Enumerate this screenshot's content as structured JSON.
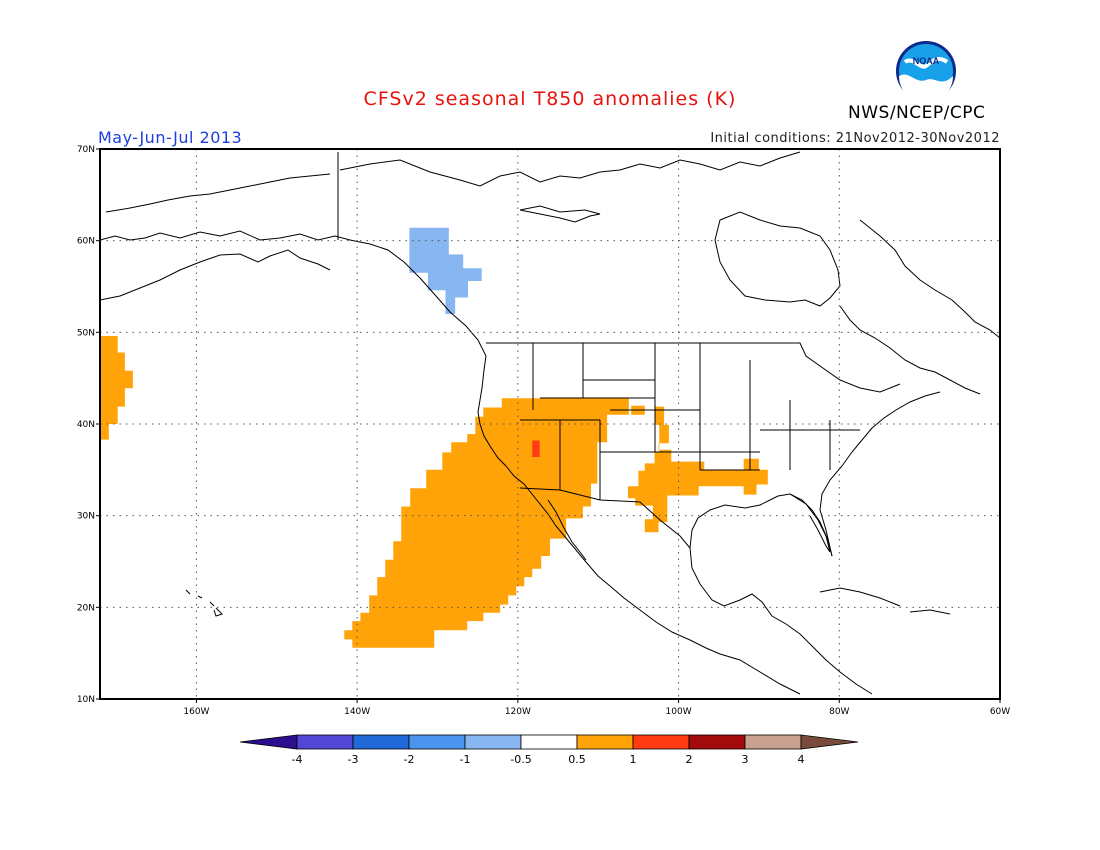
{
  "header": {
    "title": "CFSv2 seasonal T850 anomalies (K)",
    "agency": "NWS/NCEP/CPC",
    "logo_text": "NOAA",
    "season": "May-Jun-Jul 2013",
    "initial_conditions": "Initial conditions: 21Nov2012-30Nov2012"
  },
  "map": {
    "lon_range": [
      -172,
      -60
    ],
    "lat_range": [
      10,
      70
    ],
    "lat_ticks": [
      {
        "value": 70,
        "label": "70N"
      },
      {
        "value": 60,
        "label": "60N"
      },
      {
        "value": 50,
        "label": "50N"
      },
      {
        "value": 40,
        "label": "40N"
      },
      {
        "value": 30,
        "label": "30N"
      },
      {
        "value": 20,
        "label": "20N"
      },
      {
        "value": 10,
        "label": "10N"
      }
    ],
    "lon_ticks": [
      {
        "value": -160,
        "label": "160W"
      },
      {
        "value": -140,
        "label": "140W"
      },
      {
        "value": -120,
        "label": "120W"
      },
      {
        "value": -100,
        "label": "100W"
      },
      {
        "value": -80,
        "label": "80W"
      },
      {
        "value": -60,
        "label": "60W"
      }
    ],
    "grid": "dotted",
    "anomaly_regions": [
      {
        "name": "alaska-panhandle-cold",
        "level": "-1 to -0.5",
        "color": "#87b6f0",
        "lonlat": [
          [
            -133.5,
            61.4
          ],
          [
            -128.6,
            61.4
          ],
          [
            -128.6,
            58.5
          ],
          [
            -126.8,
            58.5
          ],
          [
            -126.8,
            57.0
          ],
          [
            -124.5,
            57.0
          ],
          [
            -124.5,
            55.6
          ],
          [
            -126.2,
            55.6
          ],
          [
            -126.2,
            53.8
          ],
          [
            -127.8,
            53.8
          ],
          [
            -127.8,
            52.0
          ],
          [
            -129,
            52.0
          ],
          [
            -129,
            54.6
          ],
          [
            -131.2,
            54.6
          ],
          [
            -131.2,
            56.5
          ],
          [
            -133.5,
            56.5
          ]
        ]
      },
      {
        "name": "pacific-dateline-warm",
        "level": "0.5 to 1",
        "color": "#ffa308",
        "lonlat": [
          [
            -172,
            49.6
          ],
          [
            -169.8,
            49.6
          ],
          [
            -169.8,
            47.8
          ],
          [
            -168.9,
            47.8
          ],
          [
            -168.9,
            45.8
          ],
          [
            -167.9,
            45.8
          ],
          [
            -167.9,
            43.9
          ],
          [
            -168.9,
            43.9
          ],
          [
            -168.9,
            41.9
          ],
          [
            -169.8,
            41.9
          ],
          [
            -169.8,
            40.0
          ],
          [
            -170.9,
            40.0
          ],
          [
            -170.9,
            38.3
          ],
          [
            -172,
            38.3
          ]
        ]
      },
      {
        "name": "eastern-pacific-west-us-warm",
        "level": "0.5 to 1",
        "color": "#ffa308",
        "lonlat": [
          [
            -122,
            42.8
          ],
          [
            -106.2,
            42.8
          ],
          [
            -106.2,
            41.0
          ],
          [
            -108.9,
            41.0
          ],
          [
            -108.9,
            38.0
          ],
          [
            -110.1,
            38.0
          ],
          [
            -110.1,
            33.5
          ],
          [
            -110.9,
            33.5
          ],
          [
            -110.9,
            31.0
          ],
          [
            -111.9,
            31.0
          ],
          [
            -111.9,
            29.7
          ],
          [
            -114,
            29.7
          ],
          [
            -114,
            27.5
          ],
          [
            -116,
            27.5
          ],
          [
            -116,
            25.6
          ],
          [
            -117.1,
            25.6
          ],
          [
            -117.1,
            24.2
          ],
          [
            -118.2,
            24.2
          ],
          [
            -118.2,
            23.3
          ],
          [
            -119.2,
            23.3
          ],
          [
            -119.2,
            22.3
          ],
          [
            -120.2,
            22.3
          ],
          [
            -120.2,
            21.3
          ],
          [
            -121.2,
            21.3
          ],
          [
            -121.2,
            20.3
          ],
          [
            -122.2,
            20.3
          ],
          [
            -122.2,
            19.4
          ],
          [
            -124.3,
            19.4
          ],
          [
            -124.3,
            18.5
          ],
          [
            -126.3,
            18.5
          ],
          [
            -126.3,
            17.5
          ],
          [
            -130.4,
            17.5
          ],
          [
            -130.4,
            15.6
          ],
          [
            -140.6,
            15.6
          ],
          [
            -140.6,
            16.5
          ],
          [
            -141.6,
            16.5
          ],
          [
            -141.6,
            17.5
          ],
          [
            -140.6,
            17.5
          ],
          [
            -140.6,
            18.5
          ],
          [
            -139.6,
            18.5
          ],
          [
            -139.6,
            19.4
          ],
          [
            -138.5,
            19.4
          ],
          [
            -138.5,
            21.3
          ],
          [
            -137.5,
            21.3
          ],
          [
            -137.5,
            23.3
          ],
          [
            -136.5,
            23.3
          ],
          [
            -136.5,
            25.2
          ],
          [
            -135.5,
            25.2
          ],
          [
            -135.5,
            27.2
          ],
          [
            -134.5,
            27.2
          ],
          [
            -134.5,
            31.0
          ],
          [
            -133.4,
            31.0
          ],
          [
            -133.4,
            33.0
          ],
          [
            -131.4,
            33.0
          ],
          [
            -131.4,
            35.0
          ],
          [
            -129.4,
            35.0
          ],
          [
            -129.4,
            36.9
          ],
          [
            -128.3,
            36.9
          ],
          [
            -128.3,
            38.0
          ],
          [
            -126.3,
            38.0
          ],
          [
            -126.3,
            38.9
          ],
          [
            -125.3,
            38.9
          ],
          [
            -125.3,
            40.8
          ],
          [
            -124.3,
            40.8
          ],
          [
            -124.3,
            41.8
          ],
          [
            -122,
            41.8
          ]
        ]
      },
      {
        "name": "colorado-warm",
        "level": "0.5 to 1",
        "color": "#ffa308",
        "lonlat": [
          [
            -105.9,
            42.0
          ],
          [
            -104.2,
            42.0
          ],
          [
            -104.2,
            41.0
          ],
          [
            -105.9,
            41.0
          ]
        ]
      },
      {
        "name": "central-plains-warm",
        "level": "0.5 to 1",
        "color": "#ffa308",
        "lonlat": [
          [
            -103,
            41.9
          ],
          [
            -101.8,
            41.9
          ],
          [
            -101.8,
            39.9
          ],
          [
            -101.2,
            39.9
          ],
          [
            -101.2,
            37.9
          ],
          [
            -102.5,
            37.9
          ],
          [
            -102.5,
            37.2
          ],
          [
            -100.9,
            37.2
          ],
          [
            -100.9,
            35.9
          ],
          [
            -96.8,
            35.9
          ],
          [
            -96.8,
            35.0
          ],
          [
            -91.9,
            35.0
          ],
          [
            -91.9,
            36.2
          ],
          [
            -90.0,
            36.2
          ],
          [
            -90.0,
            35.0
          ],
          [
            -88.9,
            35.0
          ],
          [
            -88.9,
            33.4
          ],
          [
            -90.3,
            33.4
          ],
          [
            -90.3,
            32.3
          ],
          [
            -91.9,
            32.3
          ],
          [
            -91.9,
            33.2
          ],
          [
            -97.5,
            33.2
          ],
          [
            -97.5,
            32.2
          ],
          [
            -101.4,
            32.2
          ],
          [
            -101.4,
            29.3
          ],
          [
            -102.5,
            29.3
          ],
          [
            -102.5,
            28.2
          ],
          [
            -104.2,
            28.2
          ],
          [
            -104.2,
            29.6
          ],
          [
            -103.2,
            29.6
          ],
          [
            -103.2,
            31.1
          ],
          [
            -105.4,
            31.1
          ],
          [
            -105.4,
            31.9
          ],
          [
            -106.3,
            31.9
          ],
          [
            -106.3,
            33.2
          ],
          [
            -105.0,
            33.2
          ],
          [
            -105.0,
            34.9
          ],
          [
            -104.2,
            34.9
          ],
          [
            -104.2,
            35.7
          ],
          [
            -103,
            35.7
          ],
          [
            -103,
            37.0
          ],
          [
            -102.4,
            37.0
          ],
          [
            -102.4,
            39.9
          ],
          [
            -103,
            39.9
          ]
        ]
      },
      {
        "name": "nevada-hotspot",
        "level": "1 to 2",
        "color": "#ff3b13",
        "lonlat": [
          [
            -118.2,
            38.2
          ],
          [
            -117.3,
            38.2
          ],
          [
            -117.3,
            36.4
          ],
          [
            -118.2,
            36.4
          ]
        ]
      }
    ]
  },
  "colorbar": {
    "levels": [
      "-4",
      "-3",
      "-2",
      "-1",
      "-0.5",
      "0.5",
      "1",
      "2",
      "3",
      "4"
    ],
    "colors": [
      "#2b0f8f",
      "#5246d6",
      "#2168d8",
      "#4c95ee",
      "#87b6f0",
      "#ffffff",
      "#ffa308",
      "#ff3b13",
      "#a30a0c",
      "#c8a191",
      "#7a4b3a"
    ]
  }
}
